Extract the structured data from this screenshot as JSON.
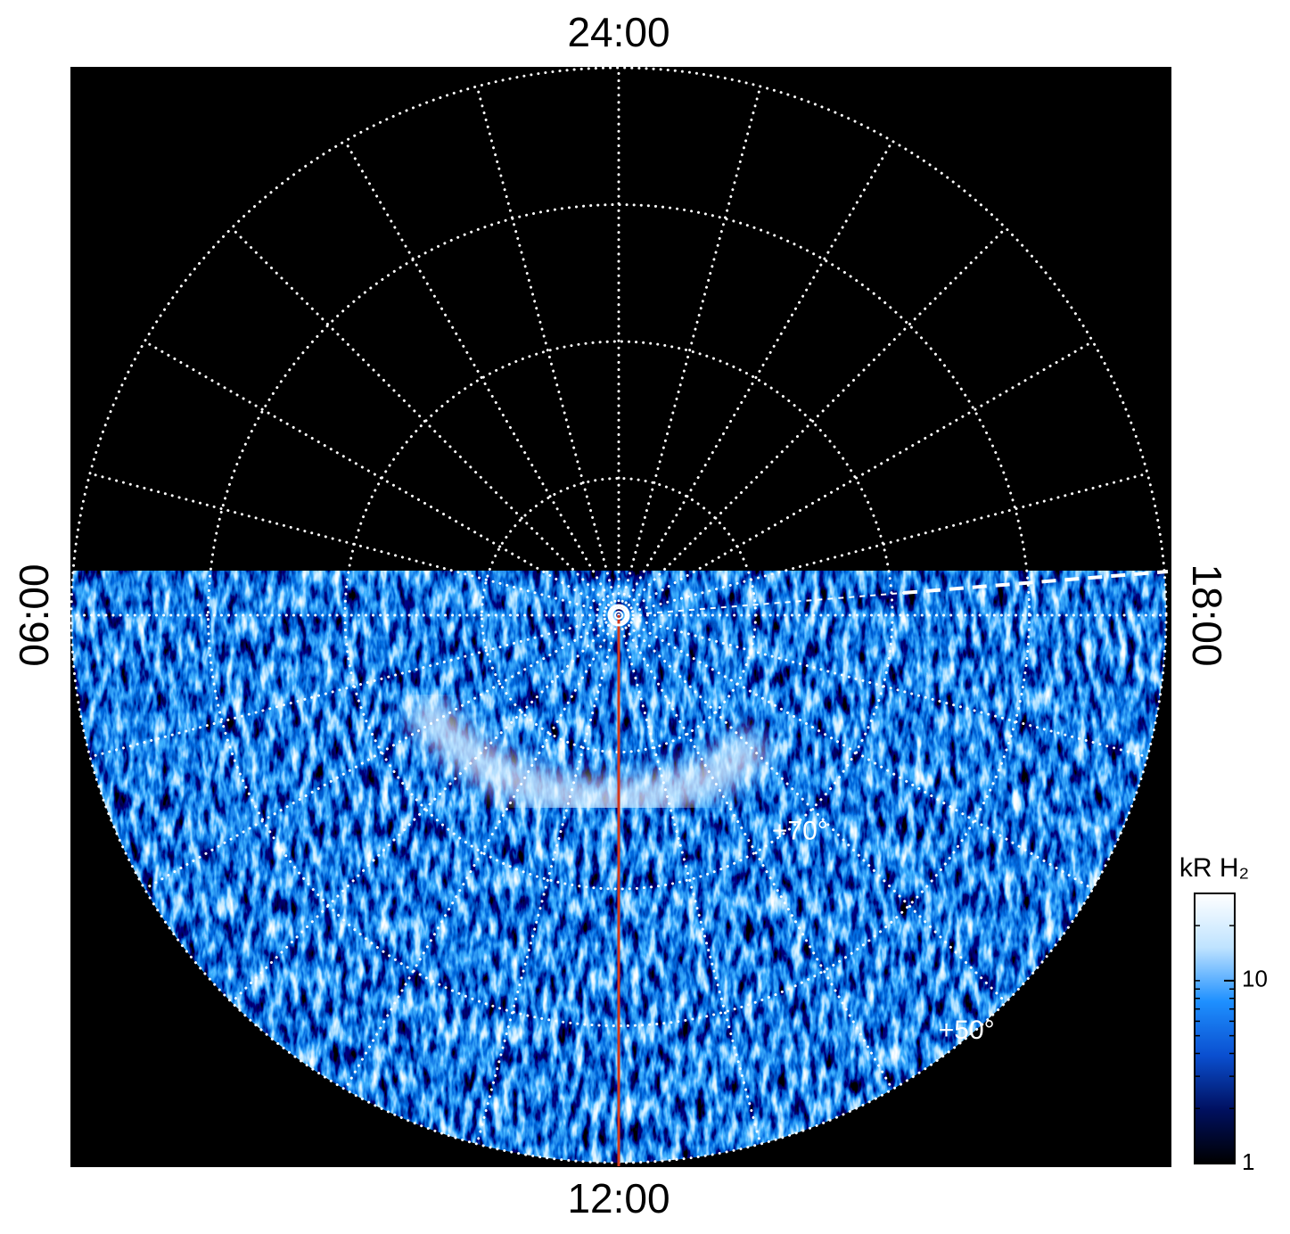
{
  "chart_data": {
    "type": "polar",
    "local_times": [
      "24:00",
      "06:00",
      "12:00",
      "18:00"
    ],
    "rlim": [
      90,
      50
    ],
    "lat_circles": [
      80,
      70,
      60,
      50
    ],
    "meridians": 24,
    "lat_labels": [
      {
        "value": 70,
        "label": "+70°"
      },
      {
        "value": 50,
        "label": "+50°"
      }
    ],
    "noon_line_color": "#d2381c",
    "colorbar": {
      "title": "kR H₂",
      "scale": "log",
      "lim": [
        1,
        30
      ],
      "ticks": [
        1,
        10
      ],
      "colors": [
        "#000000",
        "#001060",
        "#0a4fd0",
        "#1e90ff",
        "#bfe3ff",
        "#ffffff"
      ]
    }
  }
}
